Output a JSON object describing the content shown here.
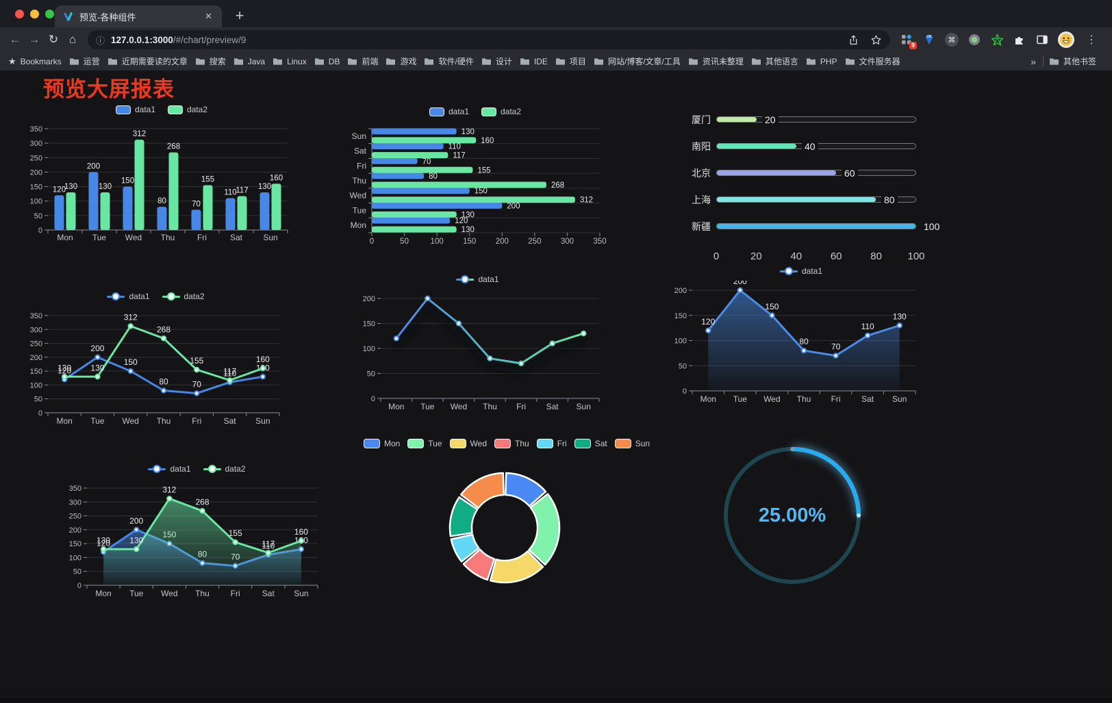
{
  "browser": {
    "tab_title": "预览-各种组件",
    "url_host": "127.0.0.1:3000",
    "url_path": "/#/chart/preview/9",
    "extension_badge": "9",
    "bookmarks_label": "Bookmarks",
    "bookmarks": [
      "运营",
      "近期需要读的文章",
      "搜索",
      "Java",
      "Linux",
      "DB",
      "前端",
      "游戏",
      "软件/硬件",
      "设计",
      "IDE",
      "项目",
      "网站/博客/文章/工具",
      "资讯未整理",
      "其他语言",
      "PHP",
      "文件服务器"
    ],
    "bookmarks_overflow": "»",
    "other_bookmarks": "其他书签"
  },
  "page": {
    "title": "预览大屏报表"
  },
  "chart_data": [
    {
      "id": "bar-grouped",
      "type": "bar",
      "categories": [
        "Mon",
        "Tue",
        "Wed",
        "Thu",
        "Fri",
        "Sat",
        "Sun"
      ],
      "series": [
        {
          "name": "data1",
          "color": "#4787e6",
          "values": [
            120,
            200,
            150,
            80,
            70,
            110,
            130
          ]
        },
        {
          "name": "data2",
          "color": "#68e6a2",
          "values": [
            130,
            130,
            312,
            268,
            155,
            117,
            160
          ]
        }
      ],
      "ylim": [
        0,
        350
      ],
      "ystep": 50,
      "legend": "rect",
      "value_labels": true,
      "grid": true
    },
    {
      "id": "bar-horizontal",
      "type": "bar-horizontal",
      "categories": [
        "Mon",
        "Tue",
        "Wed",
        "Thu",
        "Fri",
        "Sat",
        "Sun"
      ],
      "series": [
        {
          "name": "data1",
          "color": "#4787e6",
          "values": [
            120,
            200,
            150,
            80,
            70,
            110,
            130
          ]
        },
        {
          "name": "data2",
          "color": "#68e6a2",
          "values": [
            130,
            130,
            312,
            268,
            155,
            117,
            160
          ]
        }
      ],
      "xlim": [
        0,
        350
      ],
      "xstep": 50,
      "legend": "rect",
      "value_labels": true,
      "grid": true
    },
    {
      "id": "progress-list",
      "type": "progress",
      "items": [
        {
          "label": "厦门",
          "value": 20,
          "color": "#bfe9a5"
        },
        {
          "label": "南阳",
          "value": 40,
          "color": "#67e3b5"
        },
        {
          "label": "北京",
          "value": 60,
          "color": "#9ba3e8"
        },
        {
          "label": "上海",
          "value": 80,
          "color": "#82e5e5"
        },
        {
          "label": "新疆",
          "value": 100,
          "color": "#41b9e6"
        }
      ],
      "axis_ticks": [
        0,
        20,
        40,
        60,
        80,
        100
      ]
    },
    {
      "id": "line-dual",
      "type": "line",
      "categories": [
        "Mon",
        "Tue",
        "Wed",
        "Thu",
        "Fri",
        "Sat",
        "Sun"
      ],
      "series": [
        {
          "name": "data1",
          "color": "#4787e6",
          "values": [
            120,
            200,
            150,
            80,
            70,
            110,
            130
          ]
        },
        {
          "name": "data2",
          "color": "#68e6a2",
          "values": [
            130,
            130,
            312,
            268,
            155,
            117,
            160
          ]
        }
      ],
      "ylim": [
        0,
        350
      ],
      "ystep": 50,
      "legend": "line",
      "value_labels": true,
      "grid": true
    },
    {
      "id": "line-gradient",
      "type": "line",
      "categories": [
        "Mon",
        "Tue",
        "Wed",
        "Thu",
        "Fri",
        "Sat",
        "Sun"
      ],
      "series": [
        {
          "name": "data1",
          "color": "#4787e6",
          "color2": "#68e6a2",
          "values": [
            120,
            200,
            150,
            80,
            70,
            110,
            130
          ]
        }
      ],
      "ylim": [
        0,
        200
      ],
      "ystep": 50,
      "legend": "line",
      "gradient": true,
      "shadow": true,
      "value_labels": false,
      "grid": true
    },
    {
      "id": "area-single",
      "type": "area",
      "categories": [
        "Mon",
        "Tue",
        "Wed",
        "Thu",
        "Fri",
        "Sat",
        "Sun"
      ],
      "series": [
        {
          "name": "data1",
          "color": "#4a8de8",
          "values": [
            120,
            200,
            150,
            80,
            70,
            110,
            130
          ],
          "area": true
        }
      ],
      "ylim": [
        0,
        200
      ],
      "ystep": 50,
      "legend": "line",
      "value_labels": true,
      "grid": true
    },
    {
      "id": "line-area-dual",
      "type": "area",
      "categories": [
        "Mon",
        "Tue",
        "Wed",
        "Thu",
        "Fri",
        "Sat",
        "Sun"
      ],
      "series": [
        {
          "name": "data1",
          "color": "#4787e6",
          "values": [
            120,
            200,
            150,
            80,
            70,
            110,
            130
          ],
          "area": true
        },
        {
          "name": "data2",
          "color": "#68e6a2",
          "values": [
            130,
            130,
            312,
            268,
            155,
            117,
            160
          ],
          "area": true
        }
      ],
      "ylim": [
        0,
        350
      ],
      "ystep": 50,
      "legend": "line",
      "value_labels": true,
      "grid": true
    },
    {
      "id": "donut",
      "type": "pie",
      "categories": [
        "Mon",
        "Tue",
        "Wed",
        "Thu",
        "Fri",
        "Sat",
        "Sun"
      ],
      "values": [
        120,
        200,
        150,
        80,
        70,
        110,
        130
      ],
      "colors": [
        "#4a89f4",
        "#80f2ac",
        "#f6d868",
        "#f87979",
        "#62d8f6",
        "#10ad84",
        "#f68c4b"
      ],
      "legend": "chip",
      "inner_radius": 48,
      "outer_radius": 80
    },
    {
      "id": "gauge",
      "type": "gauge",
      "value": 25,
      "max": 100,
      "label": "25.00%",
      "color": "#2aa9ec",
      "track_color": "#1d4750",
      "text_color": "#56b7ee"
    }
  ]
}
